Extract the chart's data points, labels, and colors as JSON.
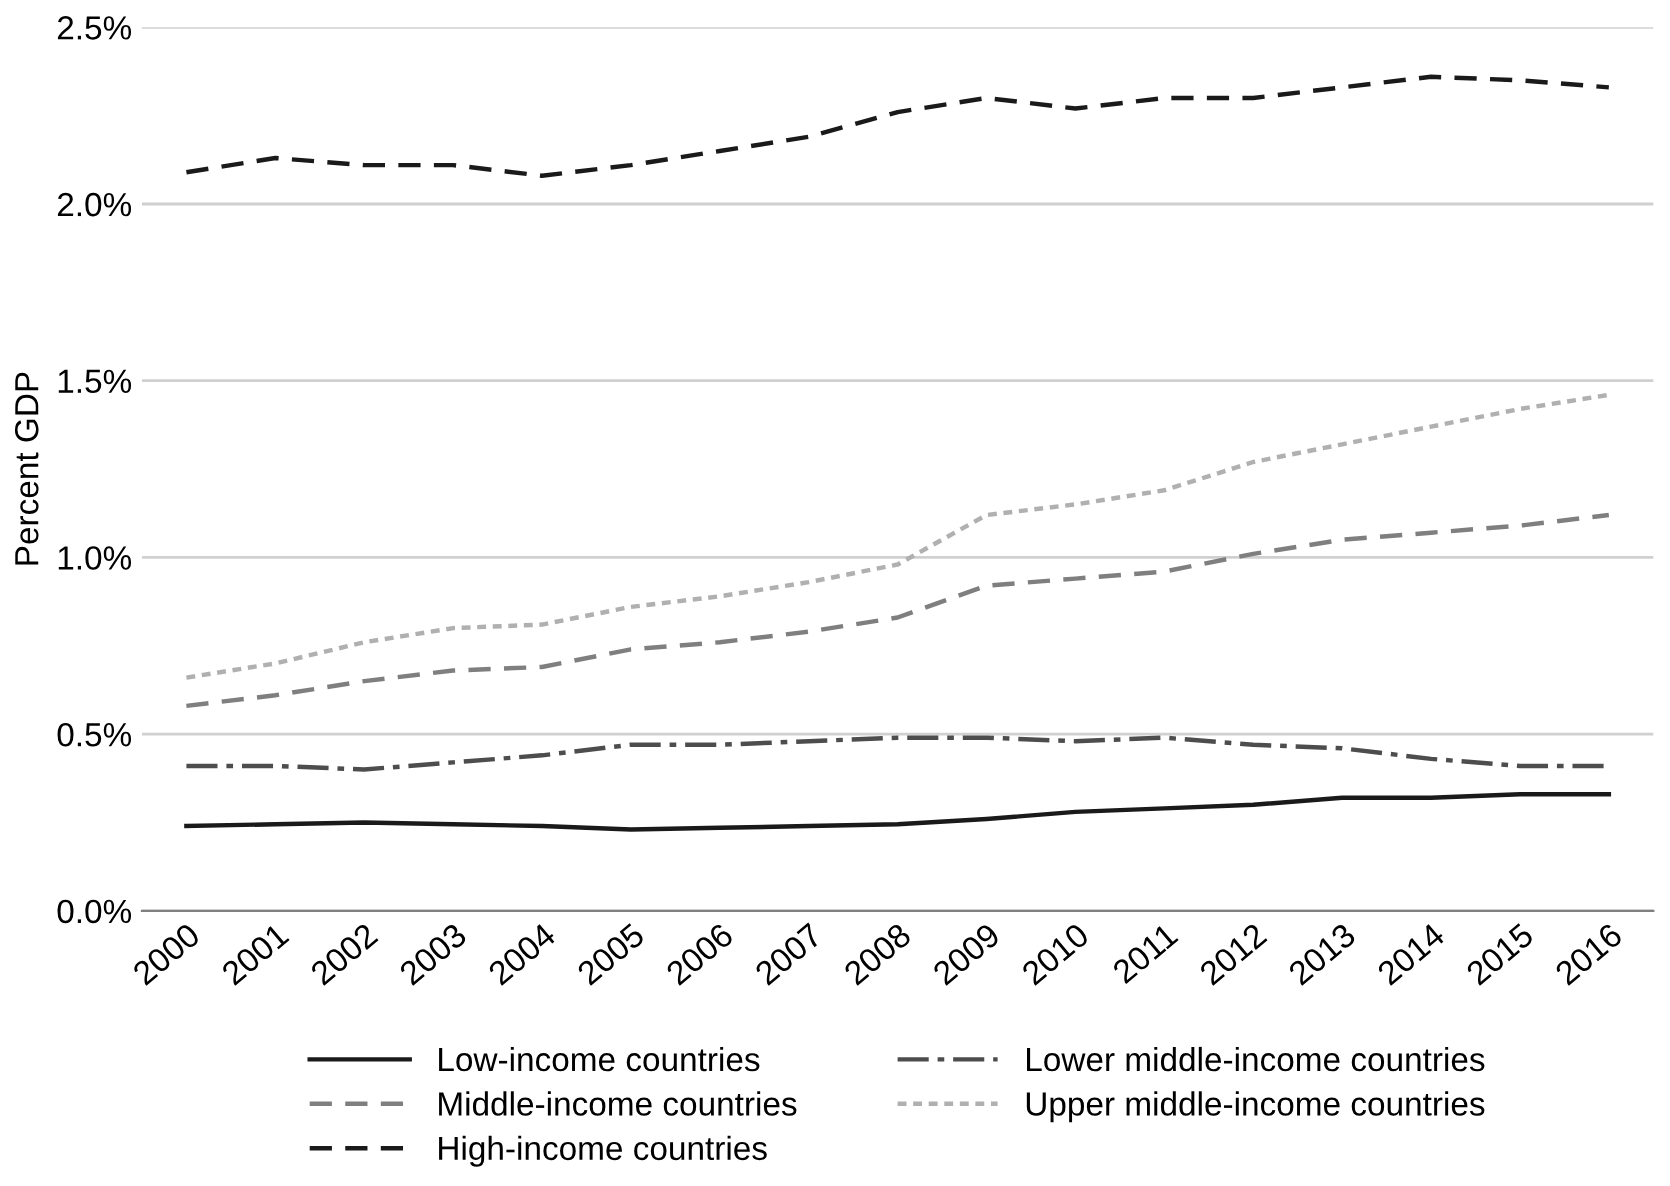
{
  "chart_data": {
    "type": "line",
    "ylabel": "Percent GDP",
    "categories": [
      "2000",
      "2001",
      "2002",
      "2003",
      "2004",
      "2005",
      "2006",
      "2007",
      "2008",
      "2009",
      "2010",
      "2011",
      "2012",
      "2013",
      "2014",
      "2015",
      "2016"
    ],
    "series": [
      {
        "name": "Low-income countries",
        "color": "#1a1a1a",
        "line_style": "solid",
        "values": [
          0.24,
          0.245,
          0.25,
          0.245,
          0.24,
          0.23,
          0.235,
          0.24,
          0.245,
          0.26,
          0.28,
          0.29,
          0.3,
          0.32,
          0.32,
          0.33,
          0.33
        ]
      },
      {
        "name": "Middle-income countries",
        "color": "#7f7f7f",
        "line_style": "dashed",
        "values": [
          0.58,
          0.61,
          0.65,
          0.68,
          0.69,
          0.74,
          0.76,
          0.79,
          0.83,
          0.92,
          0.94,
          0.96,
          1.01,
          1.05,
          1.07,
          1.09,
          1.12
        ]
      },
      {
        "name": "High-income countries",
        "color": "#1a1a1a",
        "line_style": "dashed",
        "values": [
          2.09,
          2.13,
          2.11,
          2.11,
          2.08,
          2.11,
          2.15,
          2.19,
          2.26,
          2.3,
          2.27,
          2.3,
          2.3,
          2.33,
          2.36,
          2.35,
          2.33
        ]
      },
      {
        "name": "Lower middle-income countries",
        "color": "#4d4d4d",
        "line_style": "dashdot",
        "values": [
          0.41,
          0.41,
          0.4,
          0.42,
          0.44,
          0.47,
          0.47,
          0.48,
          0.49,
          0.49,
          0.48,
          0.49,
          0.47,
          0.46,
          0.43,
          0.41,
          0.41
        ]
      },
      {
        "name": "Upper middle-income countries",
        "color": "#b0b0b0",
        "line_style": "dotted",
        "values": [
          0.66,
          0.7,
          0.76,
          0.8,
          0.81,
          0.86,
          0.89,
          0.93,
          0.98,
          1.12,
          1.15,
          1.19,
          1.27,
          1.32,
          1.37,
          1.42,
          1.46
        ]
      }
    ],
    "ylim": [
      0,
      2.5
    ],
    "yticks": [
      {
        "value": 0,
        "label": "0.0%"
      },
      {
        "value": 0.5,
        "label": "0.5%"
      },
      {
        "value": 1,
        "label": "1.0%"
      },
      {
        "value": 1.5,
        "label": "1.5%"
      },
      {
        "value": 2,
        "label": "2.0%"
      },
      {
        "value": 2.5,
        "label": "2.5%"
      }
    ],
    "grid": "y",
    "legend": "bottom",
    "marker": "none"
  }
}
